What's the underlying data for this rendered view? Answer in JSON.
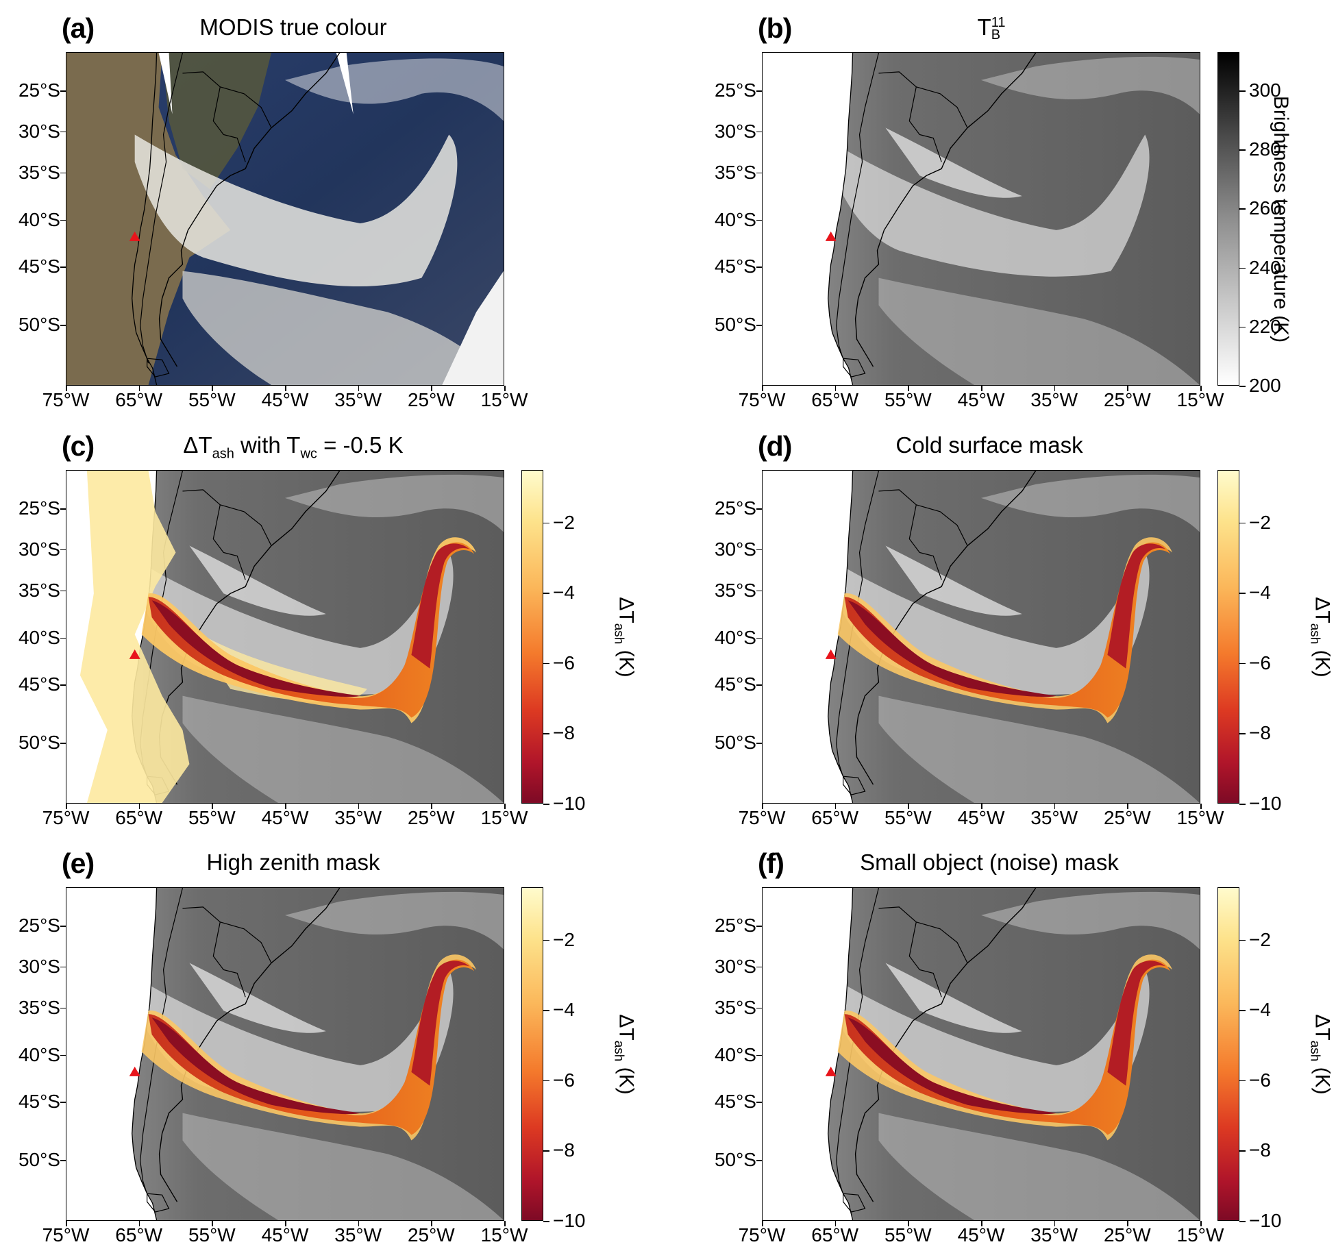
{
  "figure": {
    "lat_labels": [
      "25°S",
      "30°S",
      "35°S",
      "40°S",
      "45°S",
      "50°S"
    ],
    "lon_labels": [
      "75°W",
      "65°W",
      "55°W",
      "45°W",
      "35°W",
      "25°W",
      "15°W"
    ],
    "panels": [
      {
        "id": "a",
        "label": "(a)",
        "title": "MODIS true colour"
      },
      {
        "id": "b",
        "label": "(b)",
        "title_main": "T",
        "title_sub": "B",
        "title_sup": "11"
      },
      {
        "id": "c",
        "label": "(c)",
        "title_parts": [
          "ΔT",
          "ash",
          " with T",
          "wc",
          " = -0.5 K"
        ]
      },
      {
        "id": "d",
        "label": "(d)",
        "title": "Cold surface mask"
      },
      {
        "id": "e",
        "label": "(e)",
        "title": "High zenith mask"
      },
      {
        "id": "f",
        "label": "(f)",
        "title": "Small object (noise) mask"
      }
    ],
    "colorbar_bt": {
      "ticks": [
        "300",
        "280",
        "260",
        "240",
        "220",
        "200"
      ],
      "title": "Brightness temperature (K)",
      "range": [
        200,
        313
      ]
    },
    "colorbar_ash": {
      "ticks": [
        "−2",
        "−4",
        "−6",
        "−8",
        "−10"
      ],
      "title_main": "ΔT",
      "title_sub": "ash",
      "title_unit": " (K)",
      "range": [
        -10,
        -0.5
      ]
    },
    "colors": {
      "volcano_marker": "#e8141b",
      "ash_dark": "#7a0c1e",
      "ash_light": "#fff3b0"
    }
  }
}
